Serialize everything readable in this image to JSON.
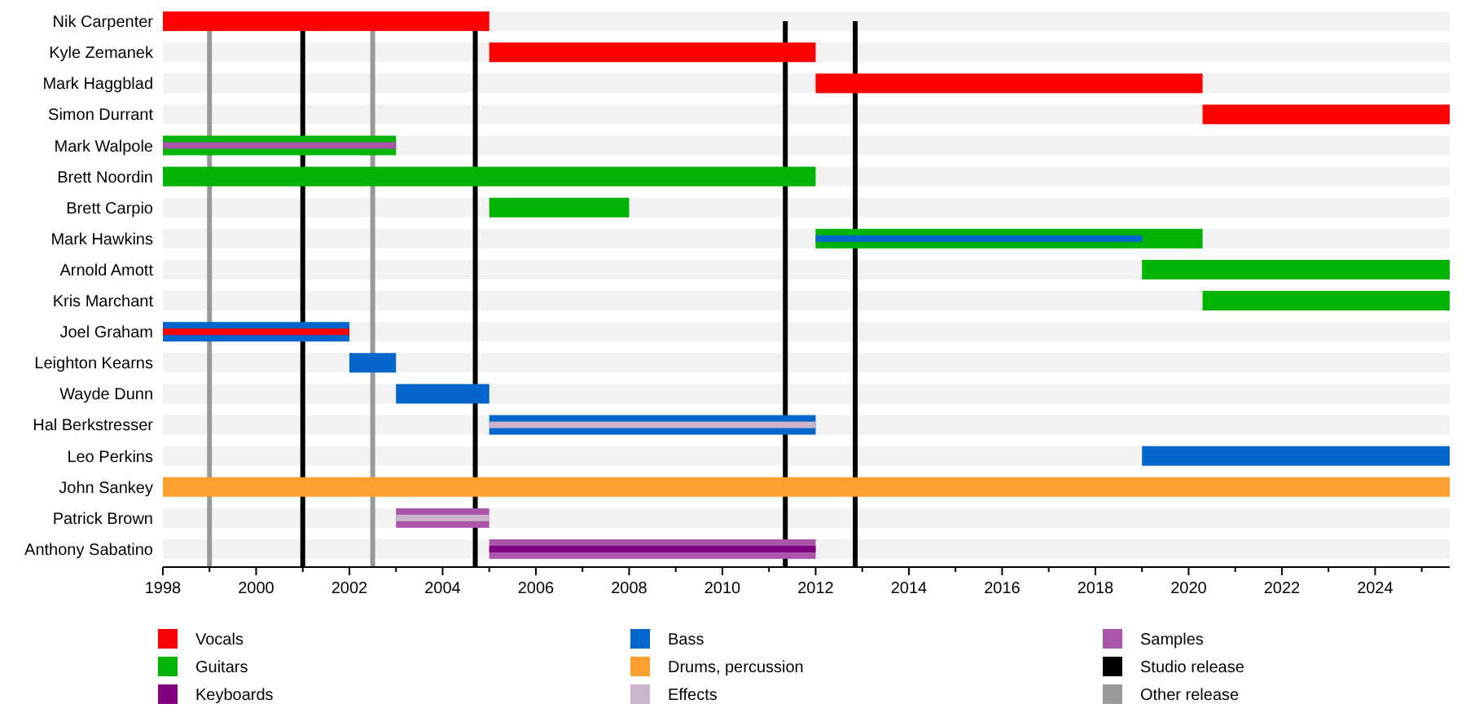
{
  "chart_data": {
    "type": "bar",
    "orientation": "horizontal",
    "legend": "bottom",
    "categories": [
      "Nik Carpenter",
      "Kyle Zemanek",
      "Mark Haggblad",
      "Simon Durrant",
      "Mark Walpole",
      "Brett Noordin",
      "Brett Carpio",
      "Mark Hawkins",
      "Arnold Amott",
      "Kris Marchant",
      "Joel Graham",
      "Leighton Kearns",
      "Wayde Dunn",
      "Hal Berkstresser",
      "Leo Perkins",
      "John Sankey",
      "Patrick Brown",
      "Anthony Sabatino"
    ],
    "series": [
      {
        "name": "Vocals",
        "color": "#ff0000",
        "base": [
          1998,
          2005,
          2012,
          2020.3,
          null,
          null,
          null,
          null,
          null,
          null,
          null,
          null,
          null,
          null,
          null,
          null,
          null,
          null
        ],
        "values": [
          7,
          7,
          8.3,
          5.3,
          null,
          null,
          null,
          null,
          null,
          null,
          null,
          null,
          null,
          null,
          null,
          null,
          null,
          null
        ]
      },
      {
        "name": "Guitars",
        "color": "#00b300",
        "base": [
          null,
          null,
          null,
          null,
          1998,
          1998,
          2005,
          2012,
          2019,
          2020.3,
          null,
          null,
          null,
          null,
          null,
          null,
          null,
          null
        ],
        "values": [
          null,
          null,
          null,
          null,
          5,
          14,
          3,
          8.3,
          6.6,
          5.3,
          null,
          null,
          null,
          null,
          null,
          null,
          null,
          null
        ]
      },
      {
        "name": "Keyboards",
        "color": "#800080",
        "base": [
          null,
          null,
          null,
          null,
          null,
          null,
          null,
          null,
          null,
          null,
          null,
          null,
          null,
          null,
          null,
          null,
          null,
          null
        ],
        "values": [
          null,
          null,
          null,
          null,
          null,
          null,
          null,
          null,
          null,
          null,
          null,
          null,
          null,
          null,
          null,
          null,
          null,
          null
        ]
      },
      {
        "name": "Bass",
        "color": "#0066cc",
        "base": [
          null,
          null,
          null,
          null,
          null,
          null,
          null,
          null,
          null,
          null,
          1998,
          2002,
          2003,
          2005,
          2019,
          null,
          null,
          null
        ],
        "values": [
          null,
          null,
          null,
          null,
          null,
          null,
          null,
          null,
          null,
          null,
          4,
          1,
          2,
          7,
          6.6,
          null,
          null,
          null
        ]
      },
      {
        "name": "Drums, percussion",
        "color": "#ffa030",
        "base": [
          null,
          null,
          null,
          null,
          null,
          null,
          null,
          null,
          null,
          null,
          null,
          null,
          null,
          null,
          null,
          1998,
          null,
          null
        ],
        "values": [
          null,
          null,
          null,
          null,
          null,
          null,
          null,
          null,
          null,
          null,
          null,
          null,
          null,
          null,
          null,
          27.6,
          null,
          null
        ]
      },
      {
        "name": "Effects",
        "color": "#ccb3cc",
        "base": [
          null,
          null,
          null,
          null,
          null,
          null,
          null,
          null,
          null,
          null,
          null,
          null,
          null,
          null,
          null,
          null,
          null,
          null
        ],
        "values": [
          null,
          null,
          null,
          null,
          null,
          null,
          null,
          null,
          null,
          null,
          null,
          null,
          null,
          null,
          null,
          null,
          null,
          null
        ]
      },
      {
        "name": "Samples",
        "color": "#aa55aa",
        "base": [
          null,
          null,
          null,
          null,
          null,
          null,
          null,
          null,
          null,
          null,
          null,
          null,
          null,
          null,
          null,
          null,
          2003,
          2005
        ],
        "values": [
          null,
          null,
          null,
          null,
          null,
          null,
          null,
          null,
          null,
          null,
          null,
          null,
          null,
          null,
          null,
          null,
          2,
          7
        ]
      },
      {
        "color": "#ff0000",
        "base": [
          null,
          null,
          null,
          null,
          null,
          null,
          null,
          null,
          null,
          null,
          1998,
          null,
          null,
          null,
          null,
          null,
          null,
          null
        ],
        "values": [
          null,
          null,
          null,
          null,
          null,
          null,
          null,
          null,
          null,
          null,
          4,
          null,
          null,
          null,
          null,
          null,
          null,
          null
        ]
      },
      {
        "color": "#aa55aa",
        "base": [
          null,
          null,
          null,
          null,
          1998,
          null,
          null,
          null,
          null,
          null,
          null,
          null,
          null,
          null,
          null,
          null,
          null,
          null
        ],
        "values": [
          null,
          null,
          null,
          null,
          5,
          null,
          null,
          null,
          null,
          null,
          null,
          null,
          null,
          null,
          null,
          null,
          null,
          null
        ]
      },
      {
        "color": "#0066cc",
        "base": [
          null,
          null,
          null,
          null,
          null,
          null,
          null,
          2012,
          null,
          null,
          null,
          null,
          null,
          null,
          null,
          null,
          null,
          null
        ],
        "values": [
          null,
          null,
          null,
          null,
          null,
          null,
          null,
          7,
          null,
          null,
          null,
          null,
          null,
          null,
          null,
          null,
          null,
          null
        ]
      },
      {
        "color": "#ccb3cc",
        "base": [
          null,
          null,
          null,
          null,
          null,
          null,
          null,
          null,
          null,
          null,
          null,
          null,
          null,
          2005,
          null,
          null,
          2003,
          null
        ],
        "values": [
          null,
          null,
          null,
          null,
          null,
          null,
          null,
          null,
          null,
          null,
          null,
          null,
          null,
          7,
          null,
          null,
          2,
          null
        ]
      },
      {
        "color": "#800080",
        "base": [
          null,
          null,
          null,
          null,
          null,
          null,
          null,
          null,
          null,
          null,
          null,
          null,
          null,
          null,
          null,
          null,
          null,
          2005
        ],
        "values": [
          null,
          null,
          null,
          null,
          null,
          null,
          null,
          null,
          null,
          null,
          null,
          null,
          null,
          null,
          null,
          null,
          null,
          7
        ]
      }
    ],
    "xlim": [
      1998,
      2025.6
    ],
    "xticks": [
      1998,
      {
        "value": 1999,
        "label": null
      },
      2000,
      {
        "value": 2001,
        "label": null
      },
      2002,
      {
        "value": 2003,
        "label": null
      },
      2004,
      {
        "value": 2005,
        "label": null
      },
      2006,
      {
        "value": 2007,
        "label": null
      },
      2008,
      {
        "value": 2009,
        "label": null
      },
      2010,
      {
        "value": 2011,
        "label": null
      },
      2012,
      {
        "value": 2013,
        "label": null
      },
      2014,
      {
        "value": 2015,
        "label": null
      },
      2016,
      {
        "value": 2017,
        "label": null
      },
      2018,
      {
        "value": 2019,
        "label": null
      },
      2020,
      {
        "value": 2021,
        "label": null
      },
      2022,
      {
        "value": 2023,
        "label": null
      },
      2024,
      {
        "value": 2025,
        "label": null
      }
    ],
    "ref_lines": [
      {
        "axis": "x",
        "value": 2001,
        "label": "Studio release",
        "color": "#000000"
      },
      {
        "axis": "x",
        "value": 2004.7,
        "color": "#000000"
      },
      {
        "axis": "x",
        "value": 2011.35,
        "color": "#000000"
      },
      {
        "axis": "x",
        "value": 2012.85,
        "color": "#000000"
      },
      {
        "axis": "x",
        "value": 1999,
        "label": "Other release",
        "color": "#999999"
      },
      {
        "axis": "x",
        "value": 2002.5,
        "color": "#999999"
      }
    ]
  }
}
